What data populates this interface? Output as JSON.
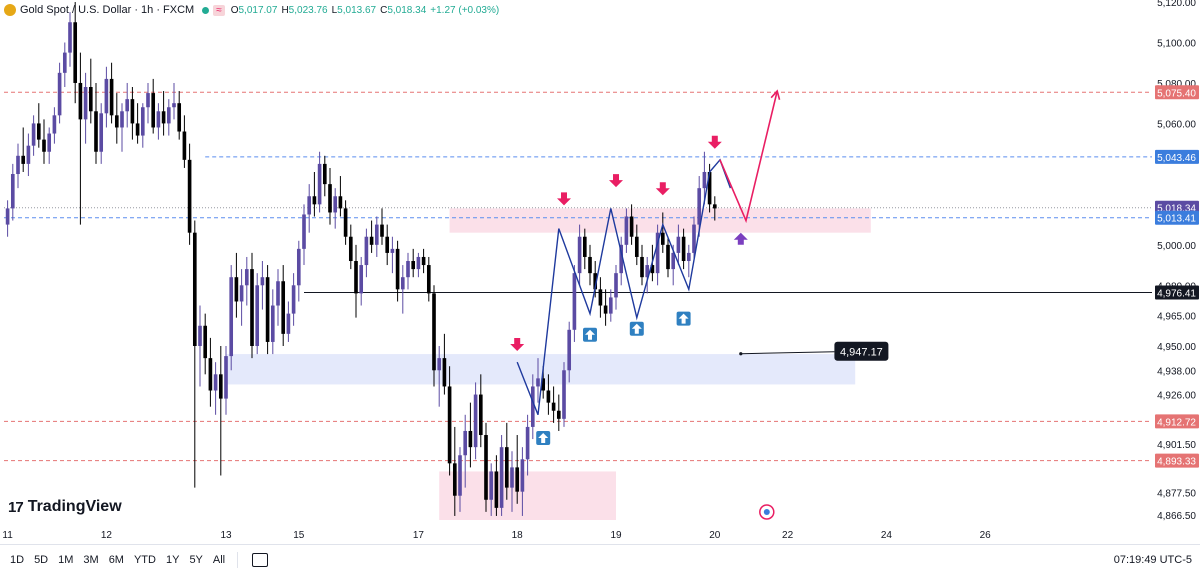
{
  "header": {
    "symbol": "Gold Spot / U.S. Dollar · 1h · FXCM",
    "wave_icon": "≈",
    "o_label": "O",
    "o_value": "5,017.07",
    "h_label": "H",
    "h_value": "5,023.76",
    "l_label": "L",
    "l_value": "5,013.67",
    "c_label": "C",
    "c_value": "5,018.34",
    "change": "+1.27 (+0.03%)"
  },
  "brand": {
    "mark": "17",
    "name": "TradingView"
  },
  "toolbar": {
    "timeframes": [
      "1D",
      "5D",
      "1M",
      "3M",
      "6M",
      "YTD",
      "1Y",
      "5Y",
      "All"
    ],
    "clock": "07:19:49 UTC-5"
  },
  "colors": {
    "up": "#5b4ba3",
    "down": "#000000",
    "sell_arrow": "#e91e63",
    "buy_arrow": "#2f80c1",
    "resistance_zone": "#fbe0e9",
    "support_zone": "#e4e9fb",
    "zigzag": "#1f3a9e",
    "projection": "#e91e63",
    "target_arrow": "#7b3fbf",
    "dashed_red": "#e57373",
    "dashed_blue": "#5b8def"
  },
  "chart_data": {
    "type": "candlestick",
    "symbol": "XAUUSD",
    "timeframe": "1h",
    "y_axis": {
      "ticks": [
        "5,120.00",
        "5,100.00",
        "5,080.00",
        "5,060.00",
        "5,000.00",
        "4,980.00",
        "4,965.00",
        "4,950.00",
        "4,938.00",
        "4,926.00",
        "4,901.50",
        "4,877.50",
        "4,866.50"
      ],
      "range": [
        4864,
        5121
      ]
    },
    "x_axis": {
      "ticks": [
        {
          "label": "11",
          "bar": 0
        },
        {
          "label": "12",
          "bar": 19
        },
        {
          "label": "13",
          "bar": 42
        },
        {
          "label": "15",
          "bar": 56
        },
        {
          "label": "17",
          "bar": 79
        },
        {
          "label": "18",
          "bar": 98
        },
        {
          "label": "19",
          "bar": 117
        },
        {
          "label": "20",
          "bar": 136
        },
        {
          "label": "22",
          "bar": 150
        },
        {
          "label": "24",
          "bar": 169
        },
        {
          "label": "26",
          "bar": 188
        }
      ]
    },
    "price_labels": [
      {
        "value": 5075.4,
        "text": "5,075.40",
        "kind": "red-dashed"
      },
      {
        "value": 5043.46,
        "text": "5,043.46",
        "kind": "blue-dashed"
      },
      {
        "value": 5018.34,
        "text": "5,018.34",
        "kind": "current"
      },
      {
        "value": 5013.41,
        "text": "5,013.41",
        "kind": "blue-dashed"
      },
      {
        "value": 4976.41,
        "text": "4,976.41",
        "kind": "black-solid"
      },
      {
        "value": 4912.72,
        "text": "4,912.72",
        "kind": "red-dashed"
      },
      {
        "value": 4893.33,
        "text": "4,893.33",
        "kind": "red-dashed"
      }
    ],
    "annotation_label": {
      "text": "4,947.17",
      "value": 4947.17,
      "start_bar": 141,
      "end_bar": 159
    },
    "zones": [
      {
        "kind": "resistance",
        "top": 5018,
        "bottom": 5006,
        "start_bar": 85,
        "end_bar": 166
      },
      {
        "kind": "support",
        "top": 4946,
        "bottom": 4931,
        "start_bar": 42,
        "end_bar": 163
      },
      {
        "kind": "demand",
        "top": 4888,
        "bottom": 4864,
        "start_bar": 83,
        "end_bar": 117
      }
    ],
    "candles": [
      {
        "o": 5010,
        "h": 5022,
        "l": 5004,
        "c": 5018
      },
      {
        "o": 5018,
        "h": 5040,
        "l": 5012,
        "c": 5035
      },
      {
        "o": 5035,
        "h": 5050,
        "l": 5028,
        "c": 5044
      },
      {
        "o": 5044,
        "h": 5058,
        "l": 5036,
        "c": 5040
      },
      {
        "o": 5040,
        "h": 5055,
        "l": 5034,
        "c": 5049
      },
      {
        "o": 5049,
        "h": 5064,
        "l": 5044,
        "c": 5060
      },
      {
        "o": 5060,
        "h": 5070,
        "l": 5048,
        "c": 5052
      },
      {
        "o": 5052,
        "h": 5062,
        "l": 5040,
        "c": 5046
      },
      {
        "o": 5046,
        "h": 5058,
        "l": 5040,
        "c": 5055
      },
      {
        "o": 5055,
        "h": 5068,
        "l": 5050,
        "c": 5064
      },
      {
        "o": 5064,
        "h": 5090,
        "l": 5060,
        "c": 5085
      },
      {
        "o": 5085,
        "h": 5100,
        "l": 5078,
        "c": 5095
      },
      {
        "o": 5095,
        "h": 5115,
        "l": 5088,
        "c": 5110
      },
      {
        "o": 5110,
        "h": 5120,
        "l": 5070,
        "c": 5080
      },
      {
        "o": 5080,
        "h": 5095,
        "l": 5010,
        "c": 5062
      },
      {
        "o": 5062,
        "h": 5085,
        "l": 5050,
        "c": 5078
      },
      {
        "o": 5078,
        "h": 5092,
        "l": 5060,
        "c": 5066
      },
      {
        "o": 5066,
        "h": 5080,
        "l": 5040,
        "c": 5046
      },
      {
        "o": 5046,
        "h": 5070,
        "l": 5040,
        "c": 5065
      },
      {
        "o": 5065,
        "h": 5088,
        "l": 5058,
        "c": 5082
      },
      {
        "o": 5082,
        "h": 5090,
        "l": 5060,
        "c": 5064
      },
      {
        "o": 5064,
        "h": 5075,
        "l": 5050,
        "c": 5058
      },
      {
        "o": 5058,
        "h": 5070,
        "l": 5046,
        "c": 5066
      },
      {
        "o": 5066,
        "h": 5080,
        "l": 5058,
        "c": 5072
      },
      {
        "o": 5072,
        "h": 5078,
        "l": 5052,
        "c": 5060
      },
      {
        "o": 5060,
        "h": 5070,
        "l": 5050,
        "c": 5054
      },
      {
        "o": 5054,
        "h": 5070,
        "l": 5048,
        "c": 5068
      },
      {
        "o": 5068,
        "h": 5080,
        "l": 5060,
        "c": 5075
      },
      {
        "o": 5075,
        "h": 5082,
        "l": 5055,
        "c": 5058
      },
      {
        "o": 5058,
        "h": 5070,
        "l": 5052,
        "c": 5066
      },
      {
        "o": 5066,
        "h": 5076,
        "l": 5054,
        "c": 5060
      },
      {
        "o": 5060,
        "h": 5072,
        "l": 5054,
        "c": 5068
      },
      {
        "o": 5068,
        "h": 5080,
        "l": 5062,
        "c": 5070
      },
      {
        "o": 5070,
        "h": 5076,
        "l": 5052,
        "c": 5056
      },
      {
        "o": 5056,
        "h": 5064,
        "l": 5038,
        "c": 5042
      },
      {
        "o": 5042,
        "h": 5050,
        "l": 5000,
        "c": 5006
      },
      {
        "o": 5006,
        "h": 5012,
        "l": 4880,
        "c": 4950
      },
      {
        "o": 4950,
        "h": 4970,
        "l": 4930,
        "c": 4960
      },
      {
        "o": 4960,
        "h": 4966,
        "l": 4936,
        "c": 4944
      },
      {
        "o": 4944,
        "h": 4954,
        "l": 4920,
        "c": 4928
      },
      {
        "o": 4928,
        "h": 4942,
        "l": 4916,
        "c": 4936
      },
      {
        "o": 4936,
        "h": 4950,
        "l": 4886,
        "c": 4924
      },
      {
        "o": 4924,
        "h": 4950,
        "l": 4916,
        "c": 4945
      },
      {
        "o": 4945,
        "h": 4990,
        "l": 4938,
        "c": 4984
      },
      {
        "o": 4984,
        "h": 4996,
        "l": 4964,
        "c": 4972
      },
      {
        "o": 4972,
        "h": 4988,
        "l": 4960,
        "c": 4980
      },
      {
        "o": 4980,
        "h": 4994,
        "l": 4970,
        "c": 4988
      },
      {
        "o": 4988,
        "h": 4996,
        "l": 4944,
        "c": 4950
      },
      {
        "o": 4950,
        "h": 4986,
        "l": 4946,
        "c": 4980
      },
      {
        "o": 4980,
        "h": 4992,
        "l": 4968,
        "c": 4984
      },
      {
        "o": 4984,
        "h": 4990,
        "l": 4946,
        "c": 4952
      },
      {
        "o": 4952,
        "h": 4978,
        "l": 4946,
        "c": 4970
      },
      {
        "o": 4970,
        "h": 4988,
        "l": 4960,
        "c": 4982
      },
      {
        "o": 4982,
        "h": 4990,
        "l": 4950,
        "c": 4956
      },
      {
        "o": 4956,
        "h": 4972,
        "l": 4952,
        "c": 4966
      },
      {
        "o": 4966,
        "h": 4986,
        "l": 4960,
        "c": 4980
      },
      {
        "o": 4980,
        "h": 5002,
        "l": 4972,
        "c": 4998
      },
      {
        "o": 4998,
        "h": 5020,
        "l": 4990,
        "c": 5015
      },
      {
        "o": 5015,
        "h": 5030,
        "l": 5006,
        "c": 5024
      },
      {
        "o": 5024,
        "h": 5036,
        "l": 5014,
        "c": 5020
      },
      {
        "o": 5020,
        "h": 5046,
        "l": 5016,
        "c": 5040
      },
      {
        "o": 5040,
        "h": 5044,
        "l": 5024,
        "c": 5030
      },
      {
        "o": 5030,
        "h": 5038,
        "l": 5010,
        "c": 5016
      },
      {
        "o": 5016,
        "h": 5028,
        "l": 5008,
        "c": 5024
      },
      {
        "o": 5024,
        "h": 5034,
        "l": 5014,
        "c": 5018
      },
      {
        "o": 5018,
        "h": 5022,
        "l": 5000,
        "c": 5004
      },
      {
        "o": 5004,
        "h": 5010,
        "l": 4988,
        "c": 4992
      },
      {
        "o": 4992,
        "h": 5000,
        "l": 4964,
        "c": 4976
      },
      {
        "o": 4976,
        "h": 4994,
        "l": 4970,
        "c": 4990
      },
      {
        "o": 4990,
        "h": 5008,
        "l": 4984,
        "c": 5004
      },
      {
        "o": 5004,
        "h": 5012,
        "l": 4996,
        "c": 5000
      },
      {
        "o": 5000,
        "h": 5014,
        "l": 4994,
        "c": 5010
      },
      {
        "o": 5010,
        "h": 5018,
        "l": 5000,
        "c": 5004
      },
      {
        "o": 5004,
        "h": 5010,
        "l": 4990,
        "c": 4996
      },
      {
        "o": 4996,
        "h": 5004,
        "l": 4986,
        "c": 4998
      },
      {
        "o": 4998,
        "h": 5002,
        "l": 4972,
        "c": 4978
      },
      {
        "o": 4978,
        "h": 4990,
        "l": 4966,
        "c": 4984
      },
      {
        "o": 4984,
        "h": 4996,
        "l": 4978,
        "c": 4992
      },
      {
        "o": 4992,
        "h": 4998,
        "l": 4984,
        "c": 4988
      },
      {
        "o": 4988,
        "h": 4996,
        "l": 4984,
        "c": 4994
      },
      {
        "o": 4994,
        "h": 4998,
        "l": 4986,
        "c": 4990
      },
      {
        "o": 4990,
        "h": 4994,
        "l": 4972,
        "c": 4976
      },
      {
        "o": 4976,
        "h": 4980,
        "l": 4930,
        "c": 4938
      },
      {
        "o": 4938,
        "h": 4950,
        "l": 4920,
        "c": 4944
      },
      {
        "o": 4944,
        "h": 4956,
        "l": 4926,
        "c": 4930
      },
      {
        "o": 4930,
        "h": 4940,
        "l": 4886,
        "c": 4892
      },
      {
        "o": 4892,
        "h": 4910,
        "l": 4866,
        "c": 4876
      },
      {
        "o": 4876,
        "h": 4900,
        "l": 4868,
        "c": 4896
      },
      {
        "o": 4896,
        "h": 4916,
        "l": 4880,
        "c": 4908
      },
      {
        "o": 4908,
        "h": 4922,
        "l": 4890,
        "c": 4900
      },
      {
        "o": 4900,
        "h": 4932,
        "l": 4894,
        "c": 4926
      },
      {
        "o": 4926,
        "h": 4936,
        "l": 4900,
        "c": 4906
      },
      {
        "o": 4906,
        "h": 4912,
        "l": 4868,
        "c": 4874
      },
      {
        "o": 4874,
        "h": 4892,
        "l": 4866,
        "c": 4888
      },
      {
        "o": 4888,
        "h": 4896,
        "l": 4866,
        "c": 4870
      },
      {
        "o": 4870,
        "h": 4906,
        "l": 4866,
        "c": 4900
      },
      {
        "o": 4900,
        "h": 4912,
        "l": 4874,
        "c": 4880
      },
      {
        "o": 4880,
        "h": 4898,
        "l": 4868,
        "c": 4890
      },
      {
        "o": 4890,
        "h": 4906,
        "l": 4872,
        "c": 4878
      },
      {
        "o": 4878,
        "h": 4900,
        "l": 4866,
        "c": 4894
      },
      {
        "o": 4894,
        "h": 4916,
        "l": 4886,
        "c": 4910
      },
      {
        "o": 4910,
        "h": 4936,
        "l": 4904,
        "c": 4930
      },
      {
        "o": 4930,
        "h": 4944,
        "l": 4922,
        "c": 4934
      },
      {
        "o": 4934,
        "h": 4940,
        "l": 4924,
        "c": 4928
      },
      {
        "o": 4928,
        "h": 4936,
        "l": 4916,
        "c": 4922
      },
      {
        "o": 4922,
        "h": 4930,
        "l": 4912,
        "c": 4918
      },
      {
        "o": 4918,
        "h": 4926,
        "l": 4908,
        "c": 4914
      },
      {
        "o": 4914,
        "h": 4942,
        "l": 4910,
        "c": 4938
      },
      {
        "o": 4938,
        "h": 4962,
        "l": 4932,
        "c": 4958
      },
      {
        "o": 4958,
        "h": 4990,
        "l": 4952,
        "c": 4986
      },
      {
        "o": 4986,
        "h": 5010,
        "l": 4980,
        "c": 5004
      },
      {
        "o": 5004,
        "h": 5008,
        "l": 4988,
        "c": 4994
      },
      {
        "o": 4994,
        "h": 5000,
        "l": 4980,
        "c": 4986
      },
      {
        "o": 4986,
        "h": 4992,
        "l": 4974,
        "c": 4978
      },
      {
        "o": 4978,
        "h": 4984,
        "l": 4964,
        "c": 4970
      },
      {
        "o": 4970,
        "h": 4978,
        "l": 4960,
        "c": 4966
      },
      {
        "o": 4966,
        "h": 4978,
        "l": 4962,
        "c": 4974
      },
      {
        "o": 4974,
        "h": 4990,
        "l": 4968,
        "c": 4986
      },
      {
        "o": 4986,
        "h": 5004,
        "l": 4980,
        "c": 5000
      },
      {
        "o": 5000,
        "h": 5018,
        "l": 4996,
        "c": 5014
      },
      {
        "o": 5014,
        "h": 5020,
        "l": 5000,
        "c": 5004
      },
      {
        "o": 5004,
        "h": 5010,
        "l": 4990,
        "c": 4994
      },
      {
        "o": 4994,
        "h": 5000,
        "l": 4980,
        "c": 4984
      },
      {
        "o": 4984,
        "h": 4994,
        "l": 4976,
        "c": 4990
      },
      {
        "o": 4990,
        "h": 5000,
        "l": 4982,
        "c": 4986
      },
      {
        "o": 4986,
        "h": 5010,
        "l": 4980,
        "c": 5006
      },
      {
        "o": 5006,
        "h": 5016,
        "l": 4996,
        "c": 5000
      },
      {
        "o": 5000,
        "h": 5004,
        "l": 4984,
        "c": 4988
      },
      {
        "o": 4988,
        "h": 5000,
        "l": 4980,
        "c": 4996
      },
      {
        "o": 4996,
        "h": 5010,
        "l": 4990,
        "c": 5004
      },
      {
        "o": 5004,
        "h": 5008,
        "l": 4988,
        "c": 4992
      },
      {
        "o": 4992,
        "h": 5000,
        "l": 4984,
        "c": 4996
      },
      {
        "o": 4996,
        "h": 5014,
        "l": 4992,
        "c": 5010
      },
      {
        "o": 5010,
        "h": 5034,
        "l": 5004,
        "c": 5028
      },
      {
        "o": 5028,
        "h": 5046,
        "l": 5020,
        "c": 5036
      },
      {
        "o": 5036,
        "h": 5040,
        "l": 5016,
        "c": 5020
      },
      {
        "o": 5020,
        "h": 5024,
        "l": 5012,
        "c": 5018
      }
    ],
    "zigzag": [
      [
        98,
        4942
      ],
      [
        102,
        4916
      ],
      [
        106,
        5008
      ],
      [
        112,
        4966
      ],
      [
        116,
        5018
      ],
      [
        121,
        4964
      ],
      [
        126,
        5010
      ],
      [
        131,
        4978
      ],
      [
        135,
        5036
      ],
      [
        137,
        5042
      ],
      [
        139,
        5028
      ]
    ],
    "projection": [
      [
        137,
        5042
      ],
      [
        142,
        5012
      ],
      [
        148,
        5076
      ]
    ],
    "sell_arrows": [
      [
        98,
        4948
      ],
      [
        107,
        5020
      ],
      [
        117,
        5029
      ],
      [
        126,
        5025
      ],
      [
        136,
        5048
      ]
    ],
    "buy_arrows": [
      [
        103,
        4908
      ],
      [
        112,
        4959
      ],
      [
        121,
        4962
      ],
      [
        130,
        4967
      ]
    ],
    "target_arrow": [
      141,
      5003
    ]
  }
}
